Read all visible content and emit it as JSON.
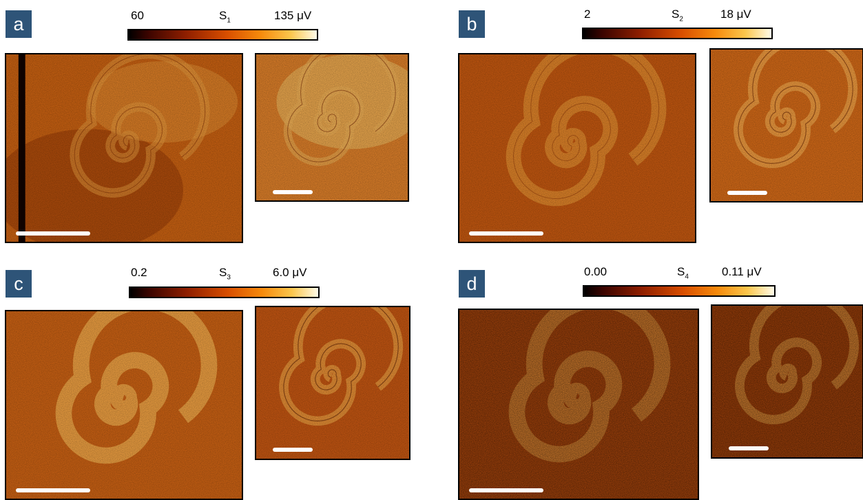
{
  "panels": [
    {
      "tag": "a",
      "symbol": "S",
      "sub": "1",
      "min": "60",
      "max": "135 μV"
    },
    {
      "tag": "b",
      "symbol": "S",
      "sub": "2",
      "min": "2",
      "max": "18 μV"
    },
    {
      "tag": "c",
      "symbol": "S",
      "sub": "3",
      "min": "0.2",
      "max": "6.0 μV"
    },
    {
      "tag": "d",
      "symbol": "S",
      "sub": "4",
      "min": "0.00",
      "max": "0.11 μV"
    }
  ]
}
